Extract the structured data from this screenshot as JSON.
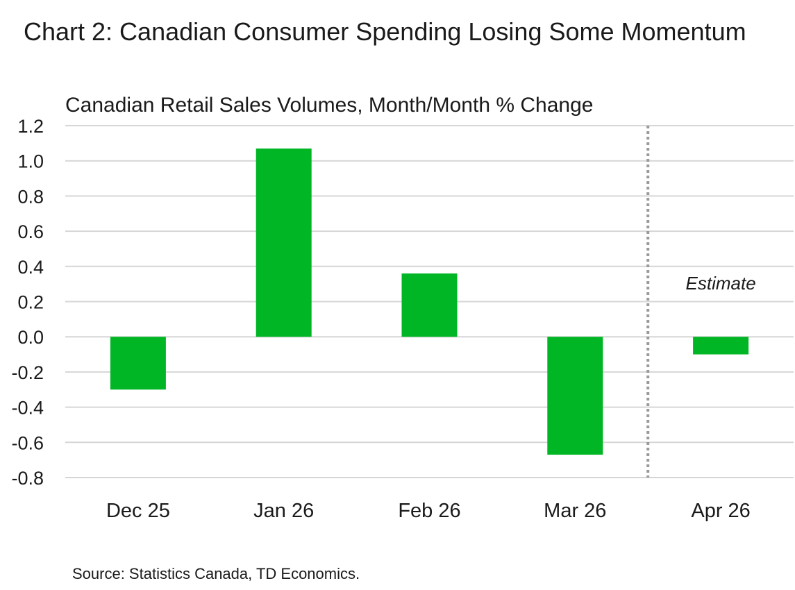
{
  "title": "Chart 2: Canadian Consumer Spending Losing Some Momentum",
  "subtitle": "Canadian Retail Sales Volumes, Month/Month % Change",
  "source": "Source: Statistics Canada, TD Economics.",
  "colors": {
    "bar": "#00b624",
    "grid": "#d6d6d6",
    "divider": "#9a9a9a"
  },
  "chart_data": {
    "type": "bar",
    "categories": [
      "Dec 25",
      "Jan 26",
      "Feb 26",
      "Mar 26",
      "Apr 26"
    ],
    "values": [
      -0.3,
      1.07,
      0.36,
      -0.67,
      -0.1
    ],
    "ylim": [
      -0.8,
      1.2
    ],
    "yticks": [
      "1.2",
      "1.0",
      "0.8",
      "0.6",
      "0.4",
      "0.2",
      "0.0",
      "-0.2",
      "-0.4",
      "-0.6",
      "-0.8"
    ],
    "grid": true,
    "annotation": {
      "text": "Estimate",
      "category": "Apr 26"
    },
    "divider_between": [
      "Mar 26",
      "Apr 26"
    ]
  }
}
